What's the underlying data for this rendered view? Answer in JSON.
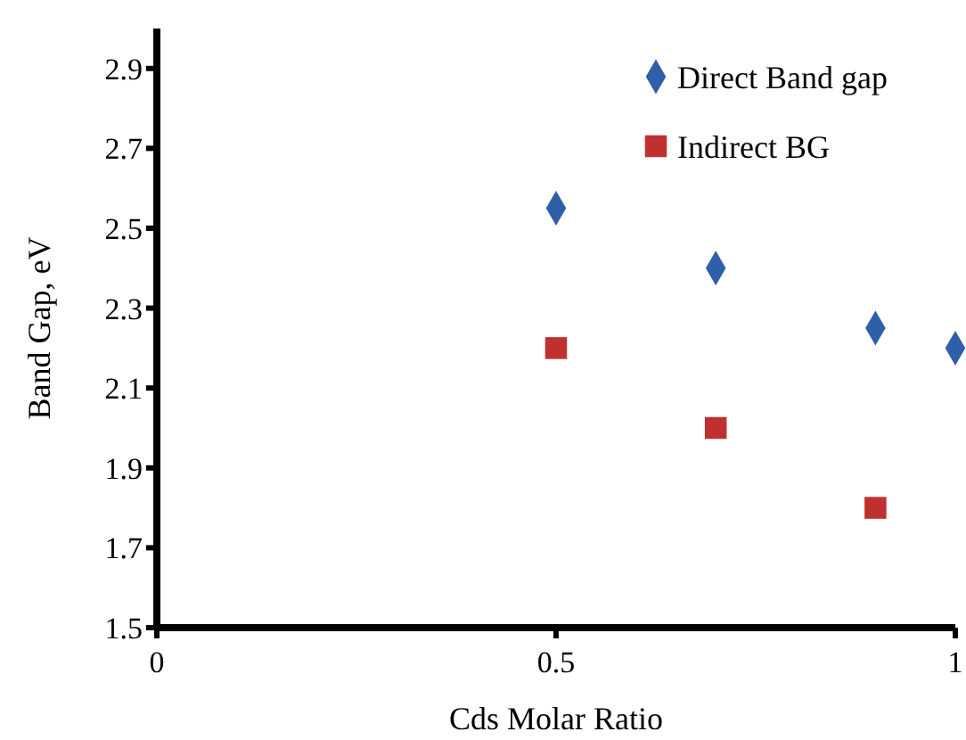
{
  "chart_data": {
    "type": "scatter",
    "xlabel": "Cds Molar Ratio",
    "ylabel": "Band Gap, eV",
    "xlim": [
      0,
      1
    ],
    "xticks": [
      0,
      0.5,
      1
    ],
    "ylim": [
      1.5,
      3.0
    ],
    "yticks": [
      1.5,
      1.7,
      1.9,
      2.1,
      2.3,
      2.5,
      2.7,
      2.9
    ],
    "legend": "top right",
    "grid": false,
    "series": [
      {
        "name": "Direct Band gap",
        "color": "#2e5fa8",
        "marker": "diamond",
        "x": [
          0.5,
          0.7,
          0.9,
          1
        ],
        "values": [
          2.55,
          2.4,
          2.25,
          2.2
        ]
      },
      {
        "name": "Indirect BG",
        "color": "#c0302f",
        "marker": "square",
        "x": [
          0.5,
          0.7,
          0.9
        ],
        "values": [
          2.2,
          2.0,
          1.8
        ]
      }
    ]
  }
}
